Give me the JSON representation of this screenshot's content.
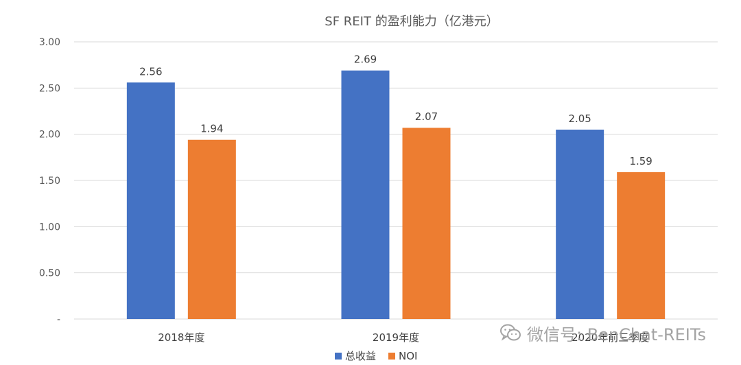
{
  "chart_data": {
    "type": "bar",
    "title": "SF REIT 的盈利能力（亿港元）",
    "categories": [
      "2018年度",
      "2019年度",
      "2020年前三季度"
    ],
    "series": [
      {
        "name": "总收益",
        "color": "#4472C4",
        "values": [
          2.56,
          2.69,
          2.05
        ]
      },
      {
        "name": "NOI",
        "color": "#ED7D31",
        "values": [
          1.94,
          2.07,
          1.59
        ]
      }
    ],
    "ylim": [
      0,
      3.0
    ],
    "yticks": [
      {
        "value": 0,
        "label": "-"
      },
      {
        "value": 0.5,
        "label": "0.50"
      },
      {
        "value": 1.0,
        "label": "1.00"
      },
      {
        "value": 1.5,
        "label": "1.50"
      },
      {
        "value": 2.0,
        "label": "2.00"
      },
      {
        "value": 2.5,
        "label": "2.50"
      },
      {
        "value": 3.0,
        "label": "3.00"
      }
    ],
    "grid": true,
    "legend_position": "bottom"
  },
  "watermark": {
    "text": "微信号: BenChat-REITs",
    "icon": "wechat-icon"
  }
}
